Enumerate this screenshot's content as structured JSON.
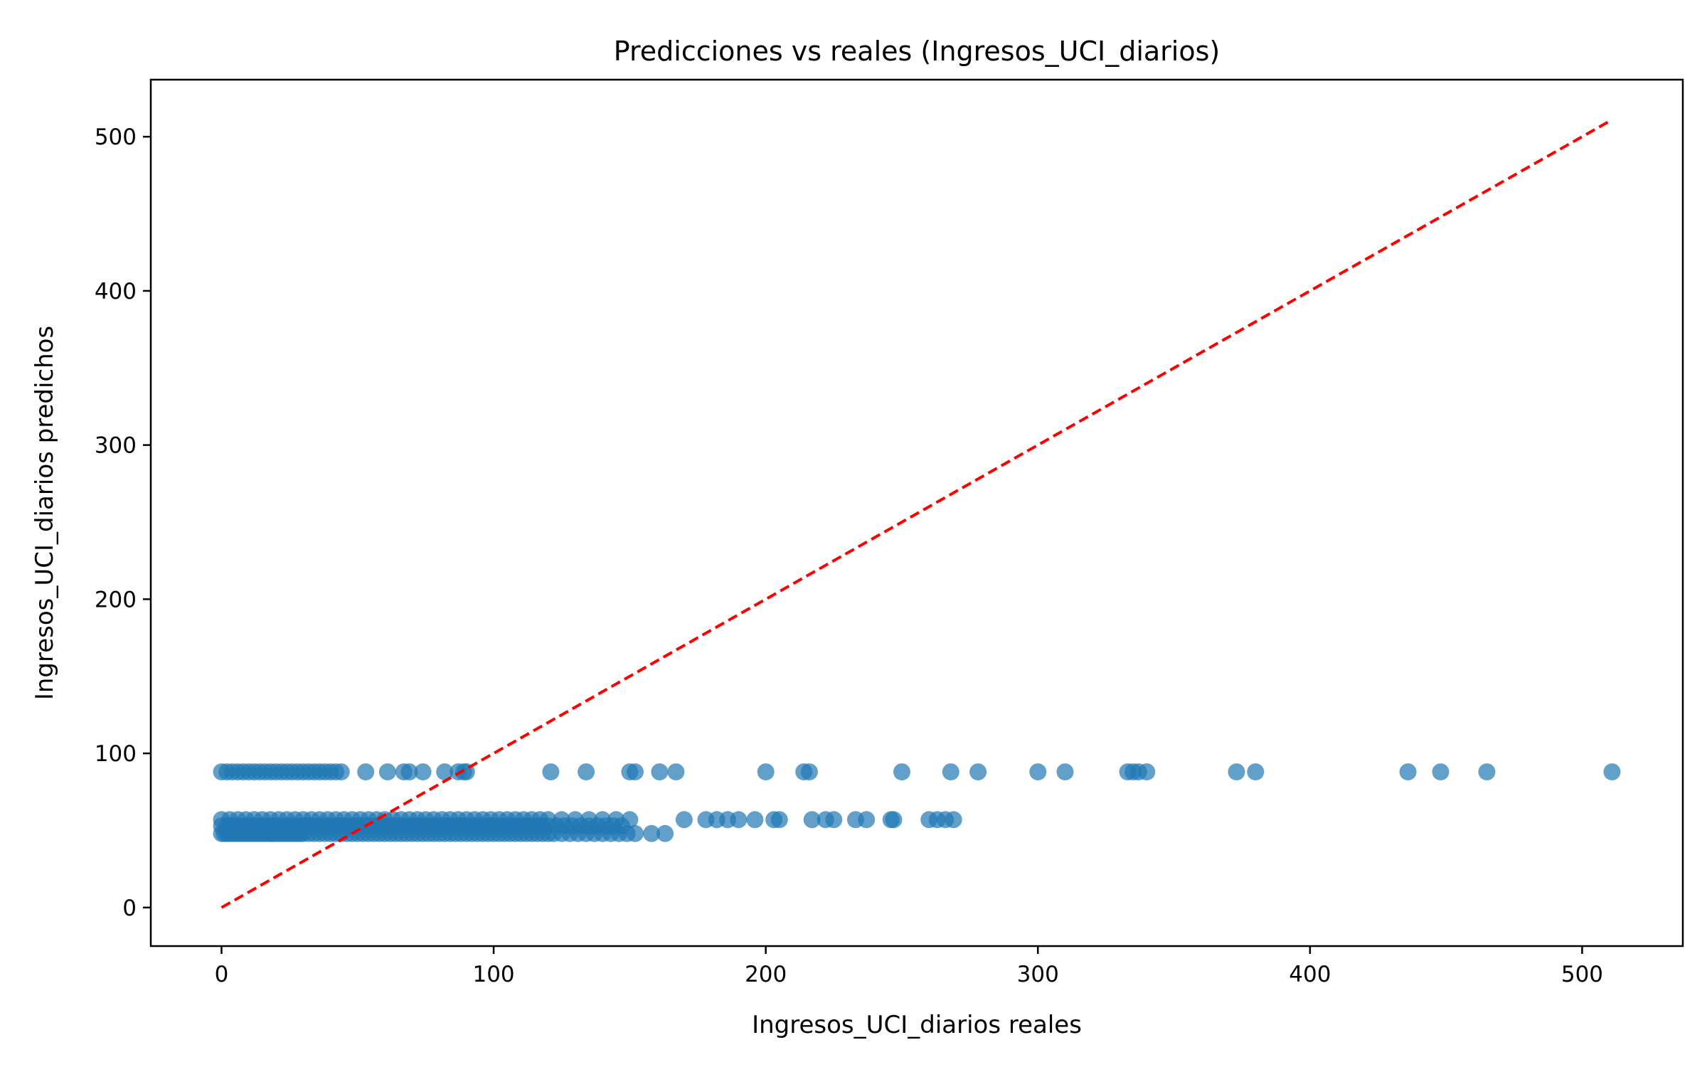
{
  "chart_data": {
    "type": "scatter",
    "title": "Predicciones vs reales (Ingresos_UCI_diarios)",
    "xlabel": "Ingresos_UCI_diarios reales",
    "ylabel": "Ingresos_UCI_diarios predichos",
    "xlim": [
      -26,
      537
    ],
    "ylim": [
      -25,
      537
    ],
    "x_ticks": [
      0,
      100,
      200,
      300,
      400,
      500
    ],
    "y_ticks": [
      0,
      100,
      200,
      300,
      400,
      500
    ],
    "grid": false,
    "legend": "none",
    "colors": {
      "points": "#1f77b4",
      "reference_line": "#ff0000",
      "axes": "#000000"
    },
    "reference_line": {
      "x": [
        0,
        511
      ],
      "y": [
        0,
        511
      ],
      "style": "dashed"
    },
    "series": [
      {
        "x": [
          0,
          1,
          2,
          3,
          4,
          5,
          6,
          7,
          8,
          9,
          10,
          11,
          12,
          13,
          14,
          15,
          16,
          17,
          18,
          19,
          20,
          21,
          22,
          23,
          24,
          25,
          26,
          27,
          28,
          29,
          30,
          32,
          34,
          36,
          38,
          40,
          42,
          44,
          46,
          48,
          50,
          52,
          54,
          56,
          58,
          60,
          62,
          64,
          66,
          68,
          70,
          72,
          74,
          76,
          78,
          80,
          82,
          84,
          86,
          88,
          90,
          92,
          94,
          96,
          98,
          100,
          102,
          104,
          106,
          108,
          110,
          112,
          114,
          116,
          118,
          120,
          122,
          125,
          128,
          131,
          134,
          137,
          140,
          143,
          146,
          149,
          152,
          158,
          163
        ],
        "y": [
          48,
          48,
          48,
          48,
          48,
          48,
          48,
          48,
          48,
          48,
          48,
          48,
          48,
          48,
          48,
          48,
          48,
          48,
          48,
          48,
          48,
          48,
          48,
          48,
          48,
          48,
          48,
          48,
          48,
          48,
          48,
          48,
          48,
          48,
          48,
          48,
          48,
          48,
          48,
          48,
          48,
          48,
          48,
          48,
          48,
          48,
          48,
          48,
          48,
          48,
          48,
          48,
          48,
          48,
          48,
          48,
          48,
          48,
          48,
          48,
          48,
          48,
          48,
          48,
          48,
          48,
          48,
          48,
          48,
          48,
          48,
          48,
          48,
          48,
          48,
          48,
          48,
          48,
          48,
          48,
          48,
          48,
          48,
          48,
          48,
          48,
          48,
          48,
          48
        ]
      },
      {
        "x": [
          0,
          2,
          4,
          6,
          8,
          10,
          12,
          14,
          16,
          18,
          20,
          22,
          24,
          26,
          28,
          30,
          32,
          34,
          36,
          38,
          40,
          42,
          44,
          46,
          48,
          50,
          52,
          54,
          56,
          58,
          60,
          62,
          64,
          66,
          68,
          70,
          72,
          74,
          76,
          78,
          80,
          82,
          84,
          86,
          88,
          90,
          92,
          94,
          96,
          98,
          100,
          102,
          104,
          106,
          108,
          110,
          112,
          114,
          116,
          118,
          120,
          123,
          126,
          129,
          132,
          135,
          138,
          141,
          144,
          147
        ],
        "y": [
          53,
          53,
          53,
          53,
          53,
          53,
          53,
          53,
          53,
          53,
          53,
          53,
          53,
          53,
          53,
          53,
          53,
          53,
          53,
          53,
          53,
          53,
          53,
          53,
          53,
          53,
          53,
          53,
          53,
          53,
          53,
          53,
          53,
          53,
          53,
          53,
          53,
          53,
          53,
          53,
          53,
          53,
          53,
          53,
          53,
          53,
          53,
          53,
          53,
          53,
          53,
          53,
          53,
          53,
          53,
          53,
          53,
          53,
          53,
          53,
          53,
          53,
          53,
          53,
          53,
          53,
          53,
          53,
          53,
          53
        ]
      },
      {
        "x": [
          0,
          3,
          6,
          9,
          12,
          15,
          18,
          21,
          24,
          27,
          30,
          33,
          36,
          39,
          42,
          45,
          48,
          51,
          54,
          57,
          60,
          63,
          66,
          69,
          72,
          75,
          78,
          81,
          84,
          87,
          90,
          93,
          96,
          99,
          102,
          105,
          108,
          111,
          114,
          117,
          120,
          125,
          130,
          135,
          140,
          145,
          150,
          170,
          178,
          182,
          186,
          190,
          196,
          203,
          205,
          217,
          222,
          225,
          233,
          237,
          246,
          247,
          260,
          263,
          266,
          269
        ],
        "y": [
          57,
          57,
          57,
          57,
          57,
          57,
          57,
          57,
          57,
          57,
          57,
          57,
          57,
          57,
          57,
          57,
          57,
          57,
          57,
          57,
          57,
          57,
          57,
          57,
          57,
          57,
          57,
          57,
          57,
          57,
          57,
          57,
          57,
          57,
          57,
          57,
          57,
          57,
          57,
          57,
          57,
          57,
          57,
          57,
          57,
          57,
          57,
          57,
          57,
          57,
          57,
          57,
          57,
          57,
          57,
          57,
          57,
          57,
          57,
          57,
          57,
          57,
          57,
          57,
          57,
          57
        ]
      },
      {
        "x": [
          0,
          2,
          4,
          6,
          8,
          10,
          12,
          14,
          16,
          18,
          20,
          22,
          24,
          26,
          28,
          30,
          32,
          34,
          36,
          38,
          40,
          42,
          44,
          53,
          61,
          67,
          69,
          74,
          82,
          87,
          89,
          90,
          121,
          134,
          150,
          152,
          161,
          167,
          200,
          214,
          216,
          250,
          268,
          278,
          300,
          310,
          333,
          335,
          337,
          340,
          373,
          380,
          436,
          448,
          465,
          511
        ],
        "y": [
          88,
          88,
          88,
          88,
          88,
          88,
          88,
          88,
          88,
          88,
          88,
          88,
          88,
          88,
          88,
          88,
          88,
          88,
          88,
          88,
          88,
          88,
          88,
          88,
          88,
          88,
          88,
          88,
          88,
          88,
          88,
          88,
          88,
          88,
          88,
          88,
          88,
          88,
          88,
          88,
          88,
          88,
          88,
          88,
          88,
          88,
          88,
          88,
          88,
          88,
          88,
          88,
          88,
          88,
          88,
          88
        ]
      }
    ]
  }
}
